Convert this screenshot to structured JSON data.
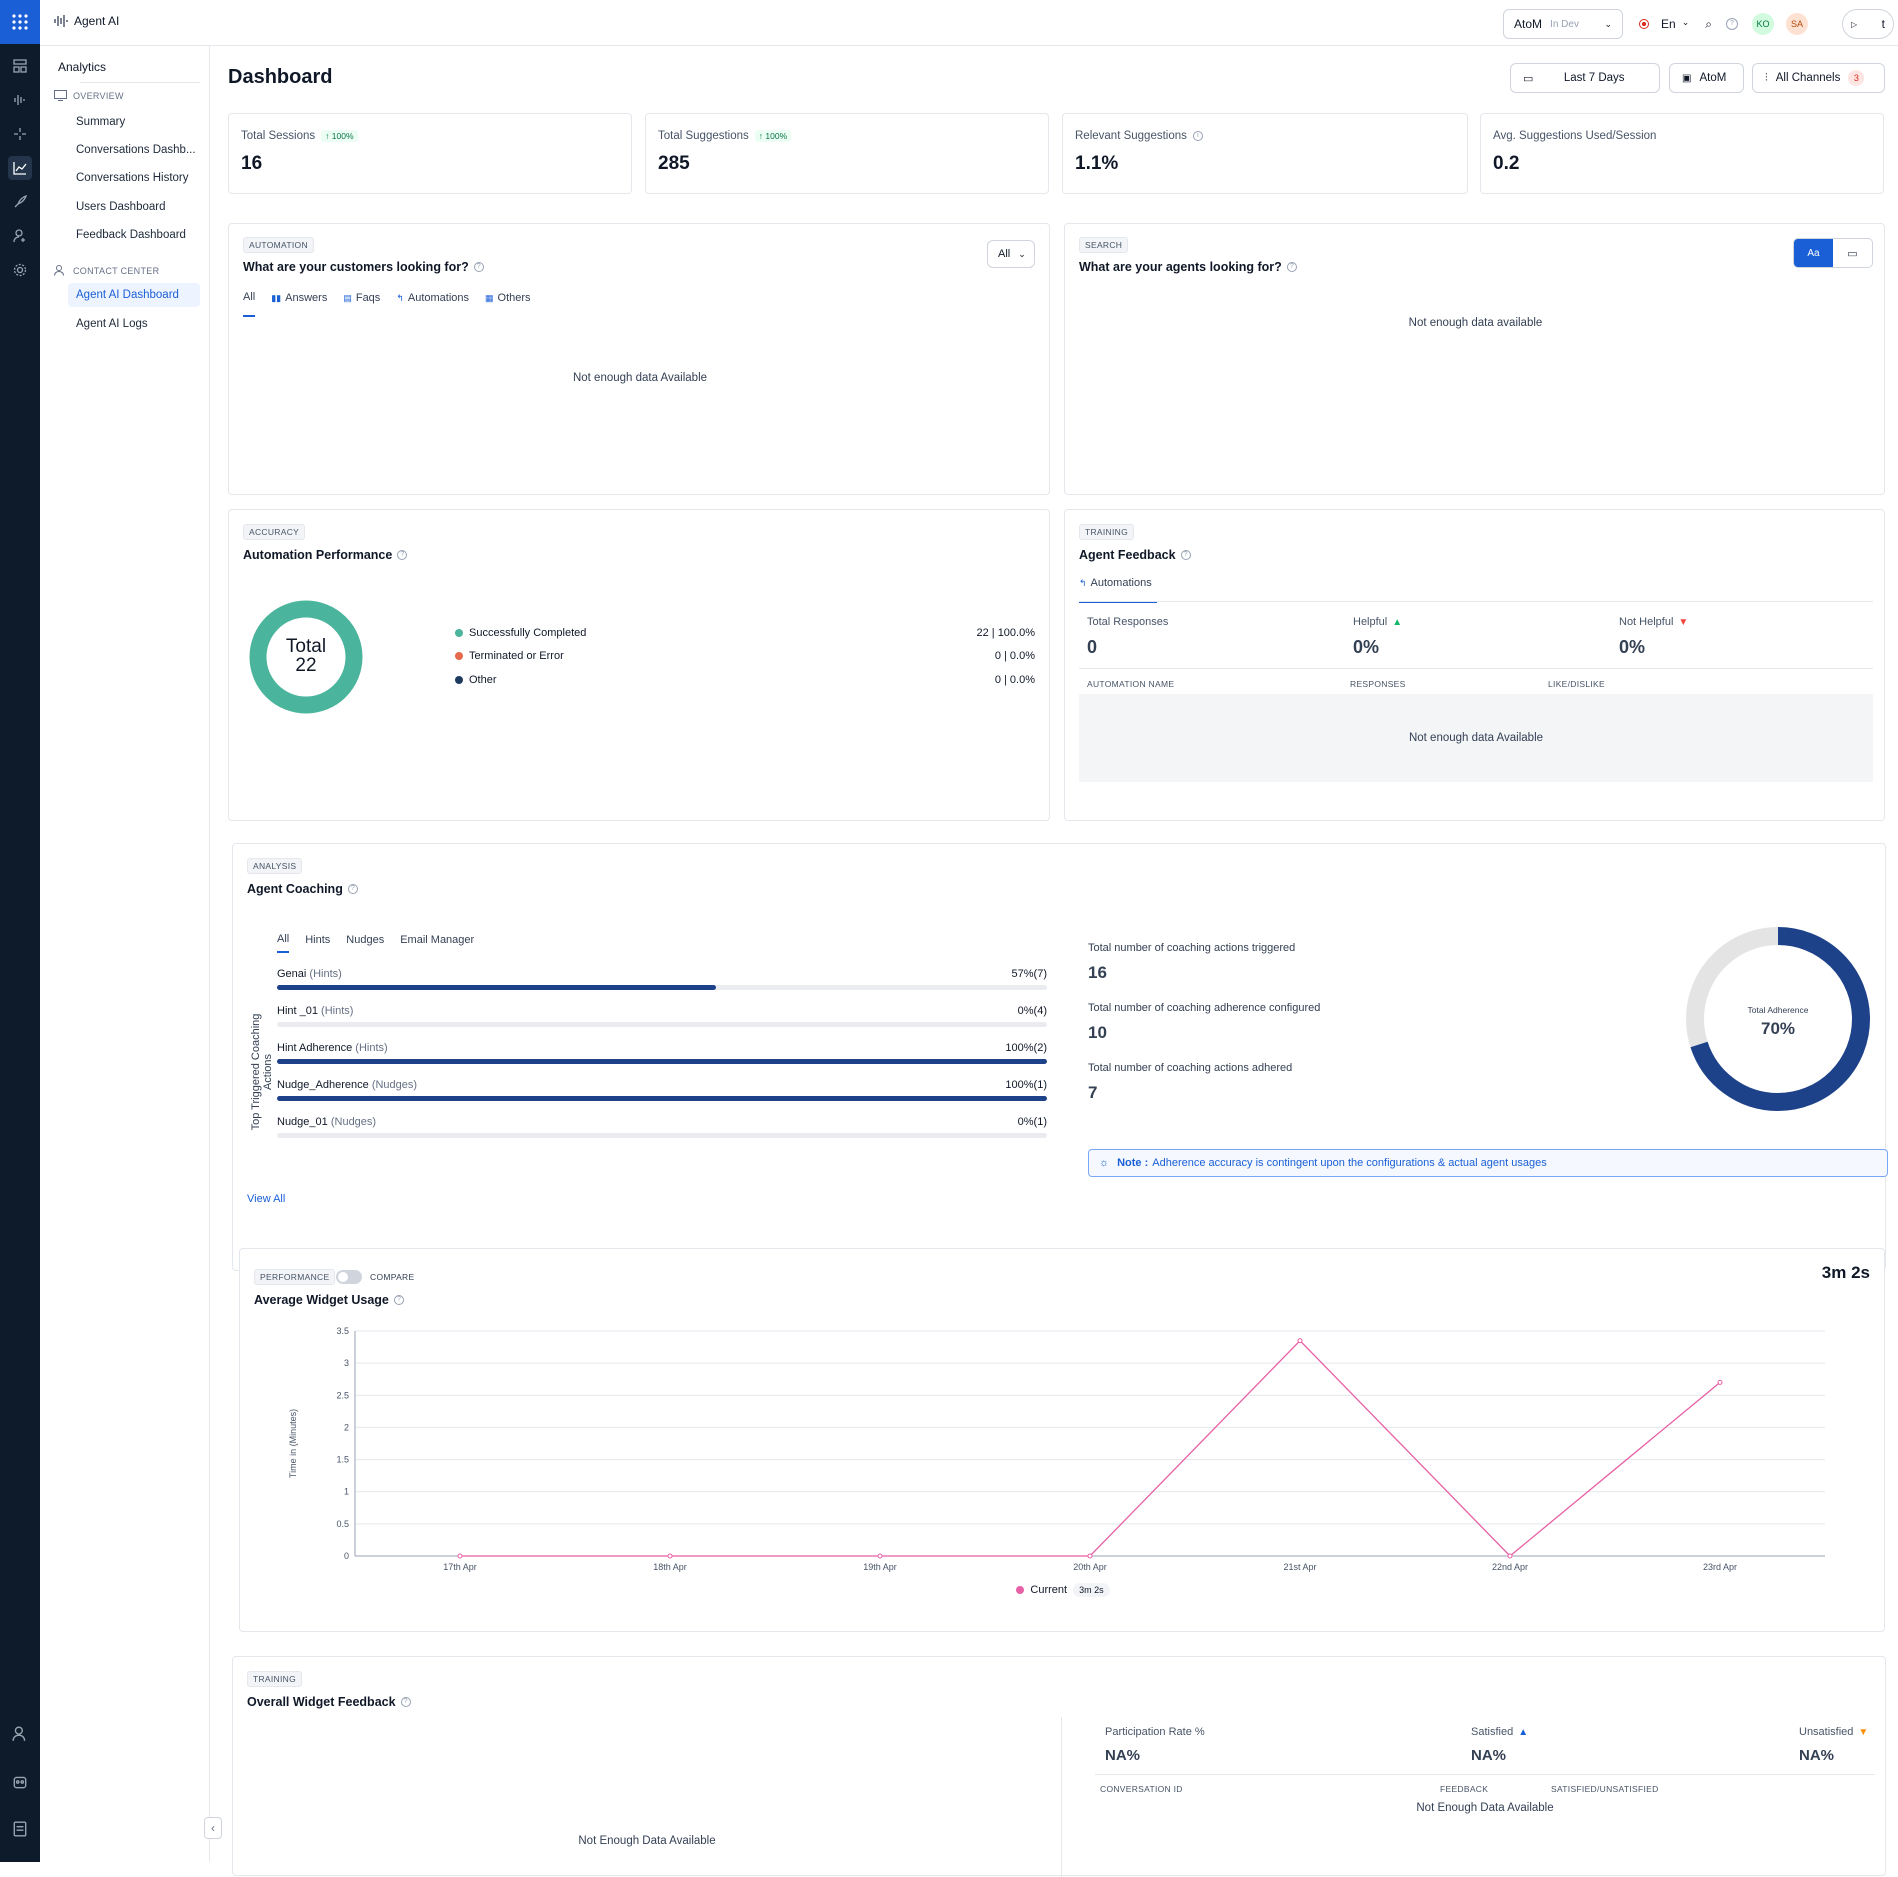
{
  "app": {
    "name": "Agent AI",
    "bot": "AtoM",
    "bot_env": "In Dev",
    "lang": "En",
    "avatar1": "KO",
    "avatar2": "SA",
    "publish": "t"
  },
  "sidebar": {
    "heading": "Analytics",
    "overview_label": "OVERVIEW",
    "overview_items": [
      "Summary",
      "Conversations Dashb...",
      "Conversations History",
      "Users Dashboard",
      "Feedback Dashboard"
    ],
    "contact_label": "CONTACT CENTER",
    "contact_items": [
      "Agent AI Dashboard",
      "Agent AI Logs"
    ]
  },
  "page": {
    "title": "Dashboard"
  },
  "filters": {
    "date": "Last 7 Days",
    "bot": "AtoM",
    "channels": "All Channels",
    "channels_count": "3"
  },
  "kpis": [
    {
      "label": "Total Sessions",
      "badge": "↑ 100%",
      "value": "16"
    },
    {
      "label": "Total Suggestions",
      "badge": "↑ 100%",
      "value": "285"
    },
    {
      "label": "Relevant Suggestions",
      "value": "1.1%"
    },
    {
      "label": "Avg. Suggestions Used/Session",
      "value": "0.2"
    }
  ],
  "customers": {
    "tag": "AUTOMATION",
    "title": "What are your customers looking for?",
    "filter": "All",
    "tabs": [
      "All",
      "Answers",
      "Faqs",
      "Automations",
      "Others"
    ],
    "empty": "Not enough data Available"
  },
  "agents_search": {
    "tag": "SEARCH",
    "title": "What are your agents looking for?",
    "toggle": "Aa",
    "empty": "Not enough data available"
  },
  "automation_perf": {
    "tag": "ACCURACY",
    "title": "Automation Performance",
    "total_label": "Total",
    "total_value": "22",
    "items": [
      {
        "label": "Successfully Completed",
        "value": "22 | 100.0%",
        "color": "#4ab59c"
      },
      {
        "label": "Terminated or Error",
        "value": "0 | 0.0%",
        "color": "#e5694a"
      },
      {
        "label": "Other",
        "value": "0 | 0.0%",
        "color": "#1d3a5f"
      }
    ]
  },
  "agent_feedback": {
    "tag": "TRAINING",
    "title": "Agent Feedback",
    "tab": "Automations",
    "total_label": "Total Responses",
    "total_value": "0",
    "helpful_label": "Helpful",
    "helpful_value": "0%",
    "not_helpful_label": "Not Helpful",
    "not_helpful_value": "0%",
    "col1": "AUTOMATION NAME",
    "col2": "RESPONSES",
    "col3": "LIKE/DISLIKE",
    "empty": "Not enough data Available"
  },
  "coaching": {
    "tag": "ANALYSIS",
    "title": "Agent Coaching",
    "tabs": [
      "All",
      "Hints",
      "Nudges",
      "Email Manager"
    ],
    "axis_label": "Top Triggered Coaching Actions",
    "bars": [
      {
        "name": "Genai",
        "type": "(Hints)",
        "value": "57%(7)",
        "fraction": 0.57
      },
      {
        "name": "Hint _01",
        "type": "(Hints)",
        "value": "0%(4)",
        "fraction": 0
      },
      {
        "name": "Hint Adherence",
        "type": "(Hints)",
        "value": "100%(2)",
        "fraction": 1
      },
      {
        "name": "Nudge_Adherence",
        "type": "(Nudges)",
        "value": "100%(1)",
        "fraction": 1
      },
      {
        "name": "Nudge_01",
        "type": "(Nudges)",
        "value": "0%(1)",
        "fraction": 0
      }
    ],
    "view_all": "View All",
    "stat1_label": "Total number of coaching actions triggered",
    "stat1_value": "16",
    "stat2_label": "Total number of coaching adherence configured",
    "stat2_value": "10",
    "stat3_label": "Total number of coaching actions adhered",
    "stat3_value": "7",
    "donut_label": "Total Adherence",
    "donut_value": "70%",
    "donut_fraction": 0.7,
    "note_label": "Note :",
    "note_text": "Adherence accuracy is contingent upon the configurations & actual agent usages"
  },
  "widget_usage": {
    "tag": "PERFORMANCE",
    "compare": "COMPARE",
    "title": "Average Widget Usage",
    "total": "3m 2s",
    "legend_label": "Current",
    "legend_value": "3m 2s"
  },
  "chart_data": {
    "type": "line",
    "x": [
      "17th Apr",
      "18th Apr",
      "19th Apr",
      "20th Apr",
      "21st Apr",
      "22nd Apr",
      "23rd Apr"
    ],
    "series": [
      {
        "name": "Current",
        "values": [
          0,
          0,
          0,
          0,
          3.35,
          0,
          2.7
        ],
        "color": "#e75fa5"
      }
    ],
    "ylabel": "Time in (Minutes)",
    "ylim": [
      0,
      3.5
    ],
    "yticks": [
      "0",
      "0.5",
      "1",
      "1.5",
      "2",
      "2.5",
      "3",
      "3.5"
    ],
    "grid": true,
    "legend": "bottom"
  },
  "overall_feedback": {
    "tag": "TRAINING",
    "title": "Overall Widget Feedback",
    "empty_left": "Not Enough Data Available",
    "part_label": "Participation Rate %",
    "part_value": "NA%",
    "sat_label": "Satisfied",
    "sat_value": "NA%",
    "unsat_label": "Unsatisfied",
    "unsat_value": "NA%",
    "col1": "CONVERSATION ID",
    "col2": "FEEDBACK",
    "col3": "SATISFIED/UNSATISFIED",
    "empty_right": "Not Enough Data Available"
  }
}
